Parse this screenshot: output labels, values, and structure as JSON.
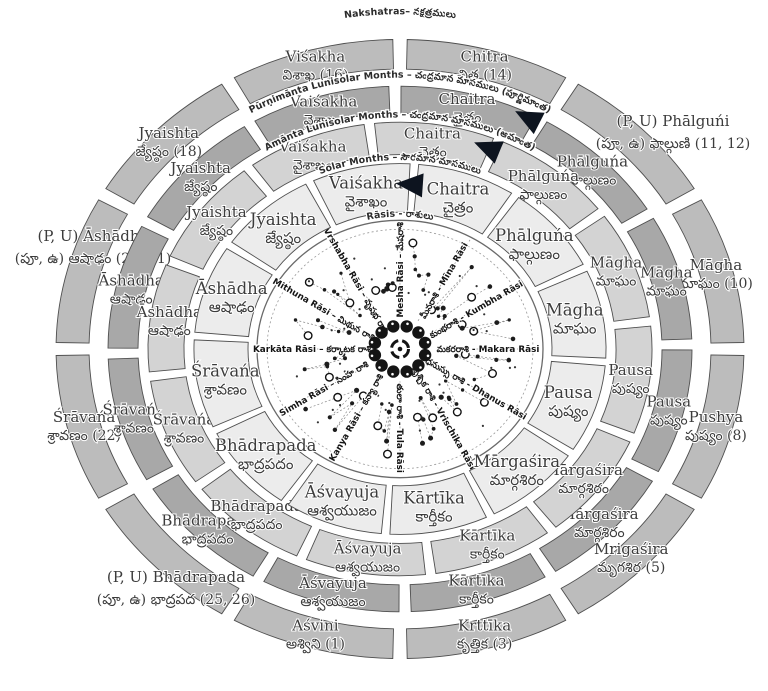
{
  "diagram": {
    "top_title": "Nakshatras– నక్షత్రములు",
    "colors": {
      "nakshatra_ring": "#bcbcbc",
      "purnimanta_ring": "#a8a8a8",
      "amanta_ring": "#d3d3d3",
      "solar_ring": "#ececec",
      "rasi_fill": "#ffffff",
      "segment_stroke": "#4f4f4f",
      "label_text": "#3c3c3c",
      "arrow": "#0d141f"
    },
    "nakshatra_ring": {
      "title": "Nakshatras– నక్షత్రములు",
      "items": [
        {
          "en": "Chitra",
          "te": "చిత్ర (14)"
        },
        {
          "en": "(P, U) Phālguńi",
          "te": "(పూ, ఉ) ఫాల్గుణి (11, 12)",
          "outside": true
        },
        {
          "en": "Māgha",
          "te": "మాఘం (10)"
        },
        {
          "en": "Pushya",
          "te": "పుష్యం (8)"
        },
        {
          "en": "Mrigaśira",
          "te": "మృగశిర (5)"
        },
        {
          "en": "Krttīka",
          "te": "కృత్తిక (3)"
        },
        {
          "en": "Aśvini",
          "te": "అశ్విని (1)"
        },
        {
          "en": "(P, U) Bhādrapada",
          "te": "(పూ, ఉ) భాద్రపద (25, 26)",
          "outside": true
        },
        {
          "en": "Śrāvańa",
          "te": "శ్రావణం (22)"
        },
        {
          "en": "(P, U) Āshādha",
          "te": "(పూ, ఉ) ఆషాఢం (20, 21)",
          "outside": true
        },
        {
          "en": "Jyaishta",
          "te": "జ్యేష్ఠం (18)"
        },
        {
          "en": "Viśakha",
          "te": "విశాఖ (16)"
        }
      ]
    },
    "purnimanta_ring": {
      "title": "Pūrṇimānta Lunisolar Months – చంద్రమాన మాసములు (పూర్ణిమాంత)"
    },
    "amanta_ring": {
      "title": "Amānta Lunisolar Months – చంద్రమాన మాసములు (అమాంత)"
    },
    "solar_ring": {
      "title": "Solar Months – సౌరమాన మాసములు"
    },
    "months_clockwise_from_top": [
      {
        "en": "Chaitra",
        "te": "చైత్రం"
      },
      {
        "en": "Phālguńa",
        "te": "ఫాల్గుణం"
      },
      {
        "en": "Māgha",
        "te": "మాఘం"
      },
      {
        "en": "Pausa",
        "te": "పుష్యం"
      },
      {
        "en": "Mārgaśira",
        "te": "మార్గశిరం"
      },
      {
        "en": "Kārtīka",
        "te": "కార్తీకం"
      },
      {
        "en": "Āśvayuja",
        "te": "ఆశ్వయుజం"
      },
      {
        "en": "Bhādrapada",
        "te": "భాద్రపదం"
      },
      {
        "en": "Śrāvańa",
        "te": "శ్రావణం"
      },
      {
        "en": "Āshādha",
        "te": "ఆషాఢం"
      },
      {
        "en": "Jyaishta",
        "te": "జ్యేష్ఠం"
      },
      {
        "en": "Vaiśakha",
        "te": "వైశాఖం"
      }
    ],
    "rasi_circle": {
      "title": "Rāsis - రాశులు",
      "labels": [
        {
          "angle": 0,
          "text": "Mesha Rāsi – మేషరాశి"
        },
        {
          "angle": 30,
          "text": "మీనరాశి - Mīna Rāsi"
        },
        {
          "angle": 60,
          "text": "కుంభరాశి - Kumbha Rāsi"
        },
        {
          "angle": 90,
          "text": "మకరరాశి - Makara Rāsi"
        },
        {
          "angle": 120,
          "text": "ధనుస్సు రాశి - Dhanus Rāsi"
        },
        {
          "angle": 150,
          "text": "వృశ్చిక రాశి - Vrischika Rāsi"
        },
        {
          "angle": 180,
          "text": "తులా రాశి - Tula Rāsi"
        },
        {
          "angle": 210,
          "text": "Kanya Rāsi – కన్యా రాశి"
        },
        {
          "angle": 240,
          "text": "Simha Rāsi – సింహ రాశి"
        },
        {
          "angle": 270,
          "text": "Karkāta Rāsi – కర్కాటక రాశి"
        },
        {
          "angle": 300,
          "text": "Mithuna Rāsi – మిథున రాశి"
        },
        {
          "angle": 330,
          "text": "Vrshabha Rāsi – వృషభ రాశి"
        }
      ]
    },
    "arrows": [
      {
        "name": "purnimanta-year-start-arrow"
      },
      {
        "name": "amanta-year-start-arrow"
      },
      {
        "name": "solar-year-start-arrow"
      }
    ]
  }
}
